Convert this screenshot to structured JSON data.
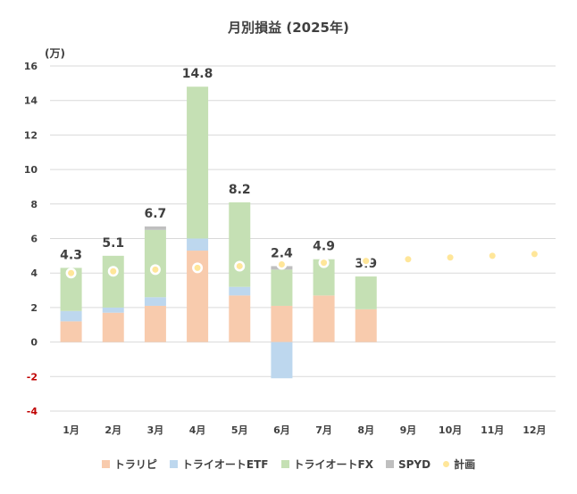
{
  "chart_data": {
    "type": "bar",
    "stacked": true,
    "title": "月別損益 (2025年)",
    "unit_label": "(万)",
    "categories": [
      "1月",
      "2月",
      "3月",
      "4月",
      "5月",
      "6月",
      "7月",
      "8月",
      "9月",
      "10月",
      "11月",
      "12月"
    ],
    "ylim": [
      -4,
      16
    ],
    "yticks": [
      -4,
      -2,
      0,
      2,
      4,
      6,
      8,
      10,
      12,
      14,
      16
    ],
    "ytick_labels": [
      "-4",
      "-2",
      "0",
      "2",
      "4",
      "6",
      "8",
      "10",
      "12",
      "14",
      "16"
    ],
    "grid": true,
    "legend_position": "bottom",
    "series": [
      {
        "name": "トラリピ",
        "color": "#F8CBAD",
        "values": [
          1.2,
          1.7,
          2.1,
          5.3,
          2.7,
          2.1,
          2.7,
          1.9,
          null,
          null,
          null,
          null
        ]
      },
      {
        "name": "トライオートETF",
        "color": "#BDD7EE",
        "values": [
          0.6,
          0.3,
          0.5,
          0.7,
          0.5,
          -2.1,
          0.0,
          0.0,
          null,
          null,
          null,
          null
        ]
      },
      {
        "name": "トライオートFX",
        "color": "#C5E0B4",
        "values": [
          2.5,
          3.0,
          3.9,
          8.8,
          4.9,
          2.1,
          2.1,
          1.9,
          null,
          null,
          null,
          null
        ]
      },
      {
        "name": "SPYD",
        "color": "#BFBFBF",
        "values": [
          0.0,
          0.0,
          0.2,
          0.0,
          0.0,
          0.2,
          0.0,
          0.0,
          null,
          null,
          null,
          null
        ]
      }
    ],
    "plan": {
      "name": "計画",
      "color": "#FFE699",
      "values": [
        4.0,
        4.1,
        4.2,
        4.3,
        4.4,
        4.5,
        4.6,
        4.7,
        4.8,
        4.9,
        5.0,
        5.1
      ]
    },
    "total_labels": [
      "4.3",
      "5.1",
      "6.7",
      "14.8",
      "8.2",
      "2.4",
      "4.9",
      "3.9",
      "",
      "",
      "",
      ""
    ]
  },
  "colors": {
    "negative_tick": "#C00000",
    "grid": "#D9D9D9",
    "text": "#404040"
  }
}
